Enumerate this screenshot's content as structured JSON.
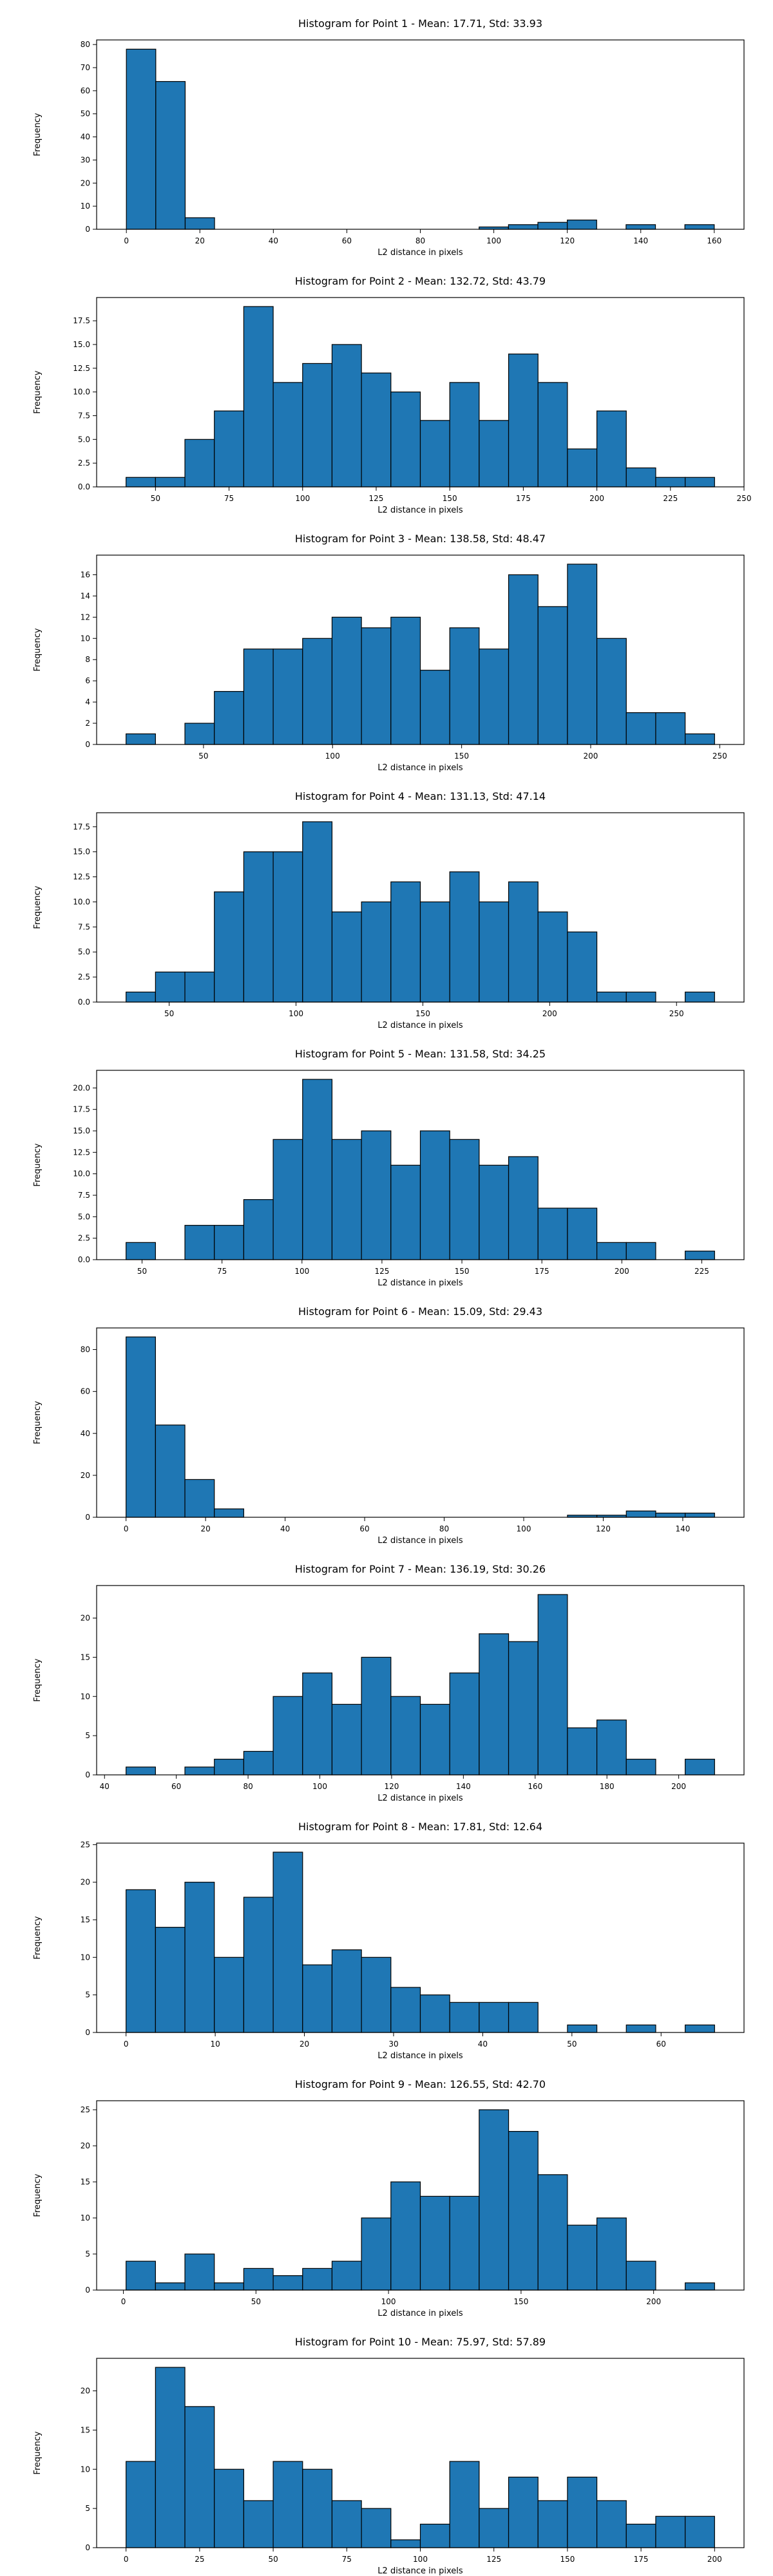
{
  "chart_data": [
    {
      "type": "bar",
      "title": "Histogram for Point 1 - Mean: 17.71, Std: 33.93",
      "xlabel": "L2 distance in pixels",
      "ylabel": "Frequency",
      "bin_start": 0,
      "bin_width": 8,
      "counts": [
        78,
        64,
        5,
        0,
        0,
        0,
        0,
        0,
        0,
        0,
        0,
        0,
        1,
        2,
        3,
        4,
        0,
        2,
        0,
        2
      ],
      "xlim": [
        -8.1,
        168.1
      ],
      "ylim": [
        0,
        82
      ],
      "xticks": [
        0,
        20,
        40,
        60,
        80,
        100,
        120,
        140,
        160
      ],
      "yticks": [
        0,
        10,
        20,
        30,
        40,
        50,
        60,
        70,
        80
      ],
      "grid": false,
      "legend": "none",
      "bar_color": "#1f77b4",
      "edge_color": "#000000"
    },
    {
      "type": "bar",
      "title": "Histogram for Point 2 - Mean: 132.72, Std: 43.79",
      "xlabel": "L2 distance in pixels",
      "ylabel": "Frequency",
      "bin_start": 40,
      "bin_width": 10,
      "counts": [
        1,
        1,
        5,
        8,
        19,
        11,
        13,
        15,
        12,
        10,
        7,
        11,
        7,
        14,
        11,
        4,
        8,
        2,
        1,
        1
      ],
      "xlim": [
        30,
        250
      ],
      "ylim": [
        0,
        19.95
      ],
      "xticks": [
        50,
        75,
        100,
        125,
        150,
        175,
        200,
        225,
        250
      ],
      "yticks": [
        "0.0",
        "2.5",
        "5.0",
        "7.5",
        "10.0",
        "12.5",
        "15.0",
        "17.5"
      ],
      "grid": false,
      "legend": "none",
      "bar_color": "#1f77b4",
      "edge_color": "#000000"
    },
    {
      "type": "bar",
      "title": "Histogram for Point 3 - Mean: 138.58, Std: 48.47",
      "xlabel": "L2 distance in pixels",
      "ylabel": "Frequency",
      "bin_start": 20,
      "bin_width": 11.4,
      "counts": [
        1,
        0,
        2,
        5,
        9,
        9,
        10,
        12,
        11,
        12,
        7,
        11,
        9,
        16,
        13,
        17,
        10,
        3,
        3,
        1
      ],
      "xlim": [
        8.6,
        259.4
      ],
      "ylim": [
        0,
        17.85
      ],
      "xticks": [
        50,
        100,
        150,
        200,
        250
      ],
      "yticks": [
        0,
        2,
        4,
        6,
        8,
        10,
        12,
        14,
        16
      ],
      "grid": false,
      "legend": "none",
      "bar_color": "#1f77b4",
      "edge_color": "#000000"
    },
    {
      "type": "bar",
      "title": "Histogram for Point 4 - Mean: 131.13, Std: 47.14",
      "xlabel": "L2 distance in pixels",
      "ylabel": "Frequency",
      "bin_start": 33,
      "bin_width": 11.6,
      "counts": [
        1,
        3,
        3,
        11,
        15,
        15,
        18,
        9,
        10,
        12,
        10,
        13,
        10,
        12,
        9,
        7,
        1,
        1,
        0,
        1
      ],
      "xlim": [
        21.4,
        276.6
      ],
      "ylim": [
        0,
        18.9
      ],
      "xticks": [
        50,
        100,
        150,
        200,
        250
      ],
      "yticks": [
        "0.0",
        "2.5",
        "5.0",
        "7.5",
        "10.0",
        "12.5",
        "15.0",
        "17.5"
      ],
      "grid": false,
      "legend": "none",
      "bar_color": "#1f77b4",
      "edge_color": "#000000"
    },
    {
      "type": "bar",
      "title": "Histogram for Point 5 - Mean: 131.58, Std: 34.25",
      "xlabel": "L2 distance in pixels",
      "ylabel": "Frequency",
      "bin_start": 45,
      "bin_width": 9.2,
      "counts": [
        2,
        0,
        4,
        4,
        7,
        14,
        21,
        14,
        15,
        11,
        15,
        14,
        11,
        12,
        6,
        6,
        2,
        2,
        0,
        1
      ],
      "xlim": [
        35.8,
        238.2
      ],
      "ylim": [
        0,
        22.05
      ],
      "xticks": [
        50,
        75,
        100,
        125,
        150,
        175,
        200,
        225
      ],
      "yticks": [
        "0.0",
        "2.5",
        "5.0",
        "7.5",
        "10.0",
        "12.5",
        "15.0",
        "17.5",
        "20.0"
      ],
      "grid": false,
      "legend": "none",
      "bar_color": "#1f77b4",
      "edge_color": "#000000"
    },
    {
      "type": "bar",
      "title": "Histogram for Point 6 - Mean: 15.09, Std: 29.43",
      "xlabel": "L2 distance in pixels",
      "ylabel": "Frequency",
      "bin_start": 0,
      "bin_width": 7.4,
      "counts": [
        86,
        44,
        18,
        4,
        0,
        0,
        0,
        0,
        0,
        0,
        0,
        0,
        0,
        0,
        0,
        1,
        1,
        3,
        2,
        2
      ],
      "xlim": [
        -7.4,
        155.4
      ],
      "ylim": [
        0,
        90.3
      ],
      "xticks": [
        0,
        20,
        40,
        60,
        80,
        100,
        120,
        140
      ],
      "yticks": [
        0,
        20,
        40,
        60,
        80
      ],
      "grid": false,
      "legend": "none",
      "bar_color": "#1f77b4",
      "edge_color": "#000000"
    },
    {
      "type": "bar",
      "title": "Histogram for Point 7 - Mean: 136.19, Std: 30.26",
      "xlabel": "L2 distance in pixels",
      "ylabel": "Frequency",
      "bin_start": 46,
      "bin_width": 8.2,
      "counts": [
        1,
        0,
        1,
        2,
        3,
        10,
        13,
        9,
        15,
        10,
        9,
        13,
        18,
        17,
        23,
        6,
        7,
        2,
        0,
        2
      ],
      "xlim": [
        37.8,
        218.2
      ],
      "ylim": [
        0,
        24.15
      ],
      "xticks": [
        40,
        60,
        80,
        100,
        120,
        140,
        160,
        180,
        200
      ],
      "yticks": [
        0,
        5,
        10,
        15,
        20
      ],
      "grid": false,
      "legend": "none",
      "bar_color": "#1f77b4",
      "edge_color": "#000000"
    },
    {
      "type": "bar",
      "title": "Histogram for Point 8 - Mean: 17.81, Std: 12.64",
      "xlabel": "L2 distance in pixels",
      "ylabel": "Frequency",
      "bin_start": 0,
      "bin_width": 3.3,
      "counts": [
        19,
        14,
        20,
        10,
        18,
        24,
        9,
        11,
        10,
        6,
        5,
        4,
        4,
        4,
        0,
        1,
        0,
        1,
        0,
        1
      ],
      "xlim": [
        -3.3,
        69.3
      ],
      "ylim": [
        0,
        25.2
      ],
      "xticks": [
        0,
        10,
        20,
        30,
        40,
        50,
        60
      ],
      "yticks": [
        0,
        5,
        10,
        15,
        20,
        25
      ],
      "grid": false,
      "legend": "none",
      "bar_color": "#1f77b4",
      "edge_color": "#000000"
    },
    {
      "type": "bar",
      "title": "Histogram for Point 9 - Mean: 126.55, Std: 42.70",
      "xlabel": "L2 distance in pixels",
      "ylabel": "Frequency",
      "bin_start": 1,
      "bin_width": 11.1,
      "counts": [
        4,
        1,
        5,
        1,
        3,
        2,
        3,
        4,
        10,
        15,
        13,
        13,
        25,
        22,
        16,
        9,
        10,
        4,
        0,
        1
      ],
      "xlim": [
        -10.1,
        234.1
      ],
      "ylim": [
        0,
        26.25
      ],
      "xticks": [
        0,
        50,
        100,
        150,
        200
      ],
      "yticks": [
        0,
        5,
        10,
        15,
        20,
        25
      ],
      "grid": false,
      "legend": "none",
      "bar_color": "#1f77b4",
      "edge_color": "#000000"
    },
    {
      "type": "bar",
      "title": "Histogram for Point 10 - Mean: 75.97, Std: 57.89",
      "xlabel": "L2 distance in pixels",
      "ylabel": "Frequency",
      "bin_start": 0,
      "bin_width": 10,
      "counts": [
        11,
        23,
        18,
        10,
        6,
        11,
        10,
        6,
        5,
        1,
        3,
        11,
        5,
        9,
        6,
        9,
        6,
        3,
        4,
        4
      ],
      "xlim": [
        -10,
        210
      ],
      "ylim": [
        0,
        24.15
      ],
      "xticks": [
        0,
        25,
        50,
        75,
        100,
        125,
        150,
        175,
        200
      ],
      "yticks": [
        0,
        5,
        10,
        15,
        20
      ],
      "grid": false,
      "legend": "none",
      "bar_color": "#1f77b4",
      "edge_color": "#000000"
    }
  ]
}
